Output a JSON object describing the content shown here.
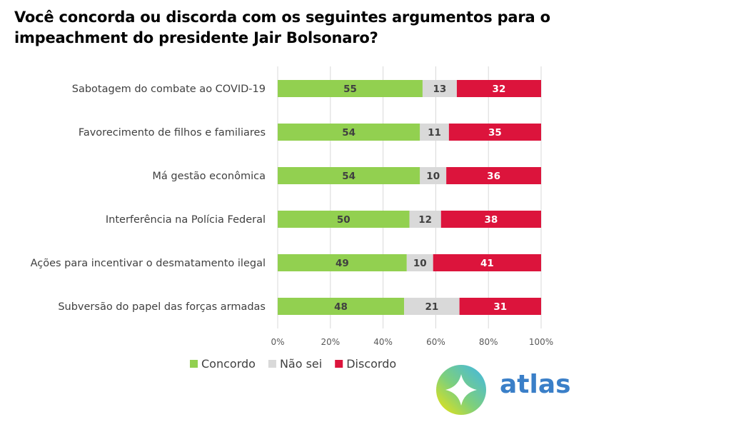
{
  "title": "Você concorda ou discorda com os seguintes argumentos para o impeachment do presidente Jair Bolsonaro?",
  "logo_text": "atlas",
  "chart_data": {
    "type": "bar",
    "orientation": "horizontal",
    "stacked": true,
    "percent_stacked": true,
    "categories": [
      "Sabotagem do combate ao COVID-19",
      "Favorecimento de filhos e familiares",
      "Má gestão econômica",
      "Interferência na Polícia Federal",
      "Ações para incentivar o desmatamento ilegal",
      "Subversão do papel das forças armadas"
    ],
    "series": [
      {
        "name": "Concordo",
        "color": "#92d050",
        "label_color": "#404040",
        "values": [
          55,
          54,
          54,
          50,
          49,
          48
        ]
      },
      {
        "name": "Não sei",
        "color": "#d9d9d9",
        "label_color": "#404040",
        "values": [
          13,
          11,
          10,
          12,
          10,
          21
        ]
      },
      {
        "name": "Discordo",
        "color": "#dc143c",
        "label_color": "#ffffff",
        "values": [
          32,
          35,
          36,
          38,
          41,
          31
        ]
      }
    ],
    "xlim": [
      0,
      100
    ],
    "xticks": [
      "0%",
      "20%",
      "40%",
      "60%",
      "80%",
      "100%"
    ],
    "grid": true,
    "legend": "bottom-left"
  }
}
